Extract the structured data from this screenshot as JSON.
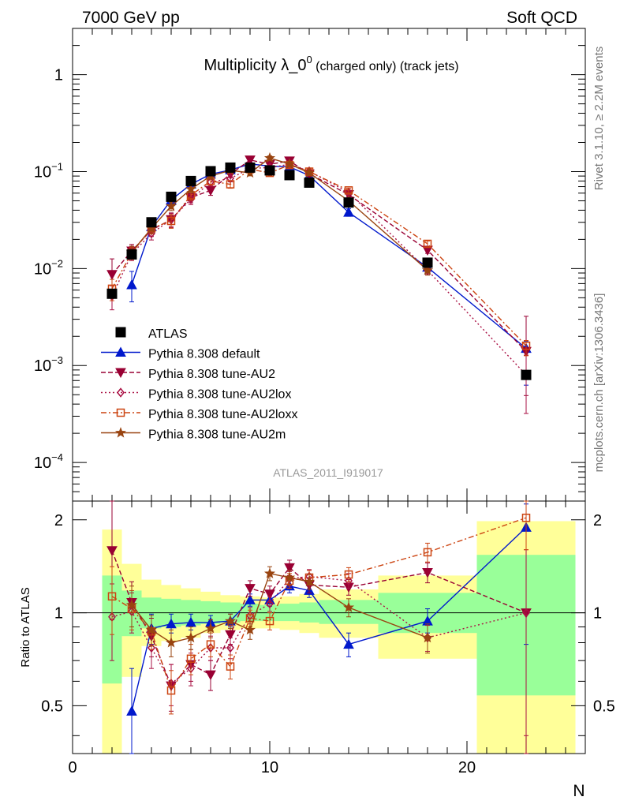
{
  "header": {
    "left": "7000 GeV pp",
    "right": "Soft QCD"
  },
  "side": {
    "rivet": "Rivet 3.1.10, ≥ 2.2M events",
    "mcplots": "mcplots.cern.ch [arXiv:1306.3436]"
  },
  "chart_data": {
    "type": "scatter",
    "title": "Multiplicity λ_0",
    "title_sup": "0",
    "title_suffix": " (charged only) (track jets)",
    "analysis_id": "ATLAS_2011_I919017",
    "xlabel": "N",
    "ylabel_ratio": "Ratio to ATLAS",
    "xlim": [
      0,
      26
    ],
    "ylim_main": [
      4e-05,
      3
    ],
    "y_log": true,
    "ylim_ratio": [
      0.35,
      2.3
    ],
    "x_ticks": [
      0,
      10,
      20
    ],
    "y_ticks_main": [
      {
        "v": 1,
        "base": "1",
        "exp": ""
      },
      {
        "v": 0.1,
        "base": "10",
        "exp": "−1"
      },
      {
        "v": 0.01,
        "base": "10",
        "exp": "−2"
      },
      {
        "v": 0.001,
        "base": "10",
        "exp": "−3"
      },
      {
        "v": 0.0001,
        "base": "10",
        "exp": "−4"
      }
    ],
    "y_ticks_ratio": [
      0.5,
      1,
      2
    ],
    "data": {
      "name": "ATLAS",
      "color": "#000000",
      "points": [
        {
          "x": 2,
          "y": 0.0055
        },
        {
          "x": 3,
          "y": 0.014
        },
        {
          "x": 4,
          "y": 0.03
        },
        {
          "x": 5,
          "y": 0.055
        },
        {
          "x": 6,
          "y": 0.08
        },
        {
          "x": 7,
          "y": 0.101
        },
        {
          "x": 8,
          "y": 0.11
        },
        {
          "x": 9,
          "y": 0.11
        },
        {
          "x": 10,
          "y": 0.103
        },
        {
          "x": 11,
          "y": 0.092
        },
        {
          "x": 12,
          "y": 0.077
        },
        {
          "x": 14,
          "y": 0.048
        },
        {
          "x": 18,
          "y": 0.0115
        },
        {
          "x": 23,
          "y": 0.0008
        }
      ]
    },
    "bands": [
      {
        "x0": 1.5,
        "x1": 2.5,
        "y_lo": 0.59,
        "y_hi": 1.32,
        "o_lo": 0.35,
        "o_hi": 1.86
      },
      {
        "x0": 2.5,
        "x1": 3.5,
        "y_lo": 0.84,
        "y_hi": 1.18,
        "o_lo": 0.62,
        "o_hi": 1.44
      },
      {
        "x0": 3.5,
        "x1": 4.5,
        "y_lo": 0.89,
        "y_hi": 1.12,
        "o_lo": 0.78,
        "o_hi": 1.28
      },
      {
        "x0": 4.5,
        "x1": 5.5,
        "y_lo": 0.9,
        "y_hi": 1.11,
        "o_lo": 0.81,
        "o_hi": 1.23
      },
      {
        "x0": 5.5,
        "x1": 6.5,
        "y_lo": 0.91,
        "y_hi": 1.1,
        "o_lo": 0.83,
        "o_hi": 1.2
      },
      {
        "x0": 6.5,
        "x1": 7.5,
        "y_lo": 0.92,
        "y_hi": 1.09,
        "o_lo": 0.86,
        "o_hi": 1.17
      },
      {
        "x0": 7.5,
        "x1": 8.5,
        "y_lo": 0.93,
        "y_hi": 1.08,
        "o_lo": 0.88,
        "o_hi": 1.14
      },
      {
        "x0": 8.5,
        "x1": 9.5,
        "y_lo": 0.94,
        "y_hi": 1.07,
        "o_lo": 0.89,
        "o_hi": 1.13
      },
      {
        "x0": 9.5,
        "x1": 10.5,
        "y_lo": 0.94,
        "y_hi": 1.06,
        "o_lo": 0.89,
        "o_hi": 1.12
      },
      {
        "x0": 10.5,
        "x1": 11.5,
        "y_lo": 0.94,
        "y_hi": 1.07,
        "o_lo": 0.88,
        "o_hi": 1.13
      },
      {
        "x0": 11.5,
        "x1": 12.5,
        "y_lo": 0.93,
        "y_hi": 1.08,
        "o_lo": 0.86,
        "o_hi": 1.15
      },
      {
        "x0": 12.5,
        "x1": 15.5,
        "y_lo": 0.92,
        "y_hi": 1.1,
        "o_lo": 0.83,
        "o_hi": 1.19
      },
      {
        "x0": 15.5,
        "x1": 20.5,
        "y_lo": 0.86,
        "y_hi": 1.16,
        "o_lo": 0.71,
        "o_hi": 1.32
      },
      {
        "x0": 20.5,
        "x1": 25.5,
        "y_lo": 0.54,
        "y_hi": 1.54,
        "o_lo": 0.35,
        "o_hi": 1.98
      }
    ],
    "series": [
      {
        "name": "Pythia 8.308 default",
        "color": "#0018cc",
        "dash": "",
        "marker": "triangle-up",
        "points": [
          {
            "x": 3,
            "y": 0.0068,
            "r": 0.48,
            "rlo": 0.32,
            "rhi": 0.66
          },
          {
            "x": 4,
            "y": 0.027,
            "r": 0.89,
            "rlo": 0.79,
            "rhi": 0.99
          },
          {
            "x": 5,
            "y": 0.051,
            "r": 0.92,
            "rlo": 0.86,
            "rhi": 0.99
          },
          {
            "x": 6,
            "y": 0.074,
            "r": 0.93,
            "rlo": 0.88,
            "rhi": 0.99
          },
          {
            "x": 7,
            "y": 0.094,
            "r": 0.93,
            "rlo": 0.88,
            "rhi": 0.98
          },
          {
            "x": 8,
            "y": 0.104,
            "r": 0.94,
            "rlo": 0.9,
            "rhi": 0.99
          },
          {
            "x": 9,
            "y": 0.12,
            "r": 1.1,
            "rlo": 1.05,
            "rhi": 1.15
          },
          {
            "x": 10,
            "y": 0.114,
            "r": 1.1,
            "rlo": 1.05,
            "rhi": 1.15
          },
          {
            "x": 11,
            "y": 0.112,
            "r": 1.22,
            "rlo": 1.16,
            "rhi": 1.28
          },
          {
            "x": 12,
            "y": 0.091,
            "r": 1.18,
            "rlo": 1.12,
            "rhi": 1.24
          },
          {
            "x": 14,
            "y": 0.038,
            "r": 0.79,
            "rlo": 0.72,
            "rhi": 0.86
          },
          {
            "x": 18,
            "y": 0.0103,
            "r": 0.94,
            "rlo": 0.86,
            "rhi": 1.03
          },
          {
            "x": 23,
            "y": 0.0015,
            "r": 1.89,
            "rlo": 0.79,
            "rhi": 2.25
          }
        ]
      },
      {
        "name": "Pythia 8.308 tune-AU2",
        "color": "#990033",
        "dash": "6,3",
        "marker": "triangle-down",
        "points": [
          {
            "x": 2,
            "y": 0.0087,
            "r": 1.59,
            "rlo": 0.95,
            "rhi": 2.3
          },
          {
            "x": 3,
            "y": 0.0152,
            "r": 1.08,
            "rlo": 0.9,
            "rhi": 1.26
          },
          {
            "x": 4,
            "y": 0.025,
            "r": 0.84,
            "rlo": 0.72,
            "rhi": 0.96
          },
          {
            "x": 5,
            "y": 0.032,
            "r": 0.58,
            "rlo": 0.48,
            "rhi": 0.68
          },
          {
            "x": 6,
            "y": 0.054,
            "r": 0.68,
            "rlo": 0.6,
            "rhi": 0.76
          },
          {
            "x": 7,
            "y": 0.064,
            "r": 0.63,
            "rlo": 0.56,
            "rhi": 0.7
          },
          {
            "x": 8,
            "y": 0.094,
            "r": 0.85,
            "rlo": 0.79,
            "rhi": 0.91
          },
          {
            "x": 9,
            "y": 0.132,
            "r": 1.2,
            "rlo": 1.13,
            "rhi": 1.27
          },
          {
            "x": 10,
            "y": 0.119,
            "r": 1.15,
            "rlo": 1.08,
            "rhi": 1.22
          },
          {
            "x": 11,
            "y": 0.129,
            "r": 1.4,
            "rlo": 1.32,
            "rhi": 1.48
          },
          {
            "x": 12,
            "y": 0.095,
            "r": 1.23,
            "rlo": 1.16,
            "rhi": 1.3
          },
          {
            "x": 14,
            "y": 0.058,
            "r": 1.21,
            "rlo": 1.14,
            "rhi": 1.28
          },
          {
            "x": 18,
            "y": 0.0155,
            "r": 1.35,
            "rlo": 1.25,
            "rhi": 1.45
          },
          {
            "x": 23,
            "y": 0.0014,
            "r": 1.0,
            "rlo": 0.35,
            "rhi": 2.3
          }
        ]
      },
      {
        "name": "Pythia 8.308 tune-AU2lox",
        "color": "#aa1144",
        "dash": "2,3",
        "marker": "diamond",
        "points": [
          {
            "x": 2,
            "y": 0.0052,
            "r": 0.97,
            "rlo": 0.7,
            "rhi": 1.24
          },
          {
            "x": 3,
            "y": 0.0142,
            "r": 1.01,
            "rlo": 0.86,
            "rhi": 1.16
          },
          {
            "x": 4,
            "y": 0.023,
            "r": 0.77,
            "rlo": 0.66,
            "rhi": 0.88
          },
          {
            "x": 5,
            "y": 0.032,
            "r": 0.59,
            "rlo": 0.5,
            "rhi": 0.68
          },
          {
            "x": 6,
            "y": 0.052,
            "r": 0.66,
            "rlo": 0.58,
            "rhi": 0.74
          },
          {
            "x": 7,
            "y": 0.078,
            "r": 0.77,
            "rlo": 0.7,
            "rhi": 0.84
          },
          {
            "x": 8,
            "y": 0.085,
            "r": 0.77,
            "rlo": 0.71,
            "rhi": 0.83
          },
          {
            "x": 9,
            "y": 0.108,
            "r": 0.98,
            "rlo": 0.92,
            "rhi": 1.04
          },
          {
            "x": 10,
            "y": 0.11,
            "r": 1.07,
            "rlo": 1.01,
            "rhi": 1.13
          },
          {
            "x": 11,
            "y": 0.119,
            "r": 1.29,
            "rlo": 1.22,
            "rhi": 1.36
          },
          {
            "x": 12,
            "y": 0.101,
            "r": 1.31,
            "rlo": 1.24,
            "rhi": 1.38
          },
          {
            "x": 14,
            "y": 0.061,
            "r": 1.27,
            "rlo": 1.2,
            "rhi": 1.34
          },
          {
            "x": 18,
            "y": 0.0096,
            "r": 0.83,
            "rlo": 0.75,
            "rhi": 0.91
          },
          {
            "x": 23,
            "y": 0.0008,
            "r": 1.0,
            "rlo": 0.4,
            "rhi": 1.6
          }
        ]
      },
      {
        "name": "Pythia 8.308 tune-AU2loxx",
        "color": "#cc4411",
        "dash": "7,3,2,3",
        "marker": "square-open",
        "points": [
          {
            "x": 2,
            "y": 0.0062,
            "r": 1.13,
            "rlo": 0.85,
            "rhi": 1.41
          },
          {
            "x": 3,
            "y": 0.0145,
            "r": 1.03,
            "rlo": 0.88,
            "rhi": 1.18
          },
          {
            "x": 4,
            "y": 0.026,
            "r": 0.87,
            "rlo": 0.76,
            "rhi": 0.98
          },
          {
            "x": 5,
            "y": 0.031,
            "r": 0.56,
            "rlo": 0.47,
            "rhi": 0.65
          },
          {
            "x": 6,
            "y": 0.057,
            "r": 0.71,
            "rlo": 0.63,
            "rhi": 0.79
          },
          {
            "x": 7,
            "y": 0.08,
            "r": 0.79,
            "rlo": 0.72,
            "rhi": 0.86
          },
          {
            "x": 8,
            "y": 0.074,
            "r": 0.67,
            "rlo": 0.61,
            "rhi": 0.73
          },
          {
            "x": 9,
            "y": 0.106,
            "r": 0.96,
            "rlo": 0.9,
            "rhi": 1.02
          },
          {
            "x": 10,
            "y": 0.097,
            "r": 0.94,
            "rlo": 0.88,
            "rhi": 1.0
          },
          {
            "x": 11,
            "y": 0.117,
            "r": 1.27,
            "rlo": 1.2,
            "rhi": 1.34
          },
          {
            "x": 12,
            "y": 0.1,
            "r": 1.3,
            "rlo": 1.23,
            "rhi": 1.37
          },
          {
            "x": 14,
            "y": 0.064,
            "r": 1.33,
            "rlo": 1.26,
            "rhi": 1.4
          },
          {
            "x": 18,
            "y": 0.018,
            "r": 1.57,
            "rlo": 1.46,
            "rhi": 1.68
          },
          {
            "x": 23,
            "y": 0.0016,
            "r": 2.03,
            "rlo": 1.6,
            "rhi": 2.3
          }
        ]
      },
      {
        "name": "Pythia 8.308 tune-AU2m",
        "color": "#994411",
        "dash": "",
        "marker": "star",
        "points": [
          {
            "x": 3,
            "y": 0.0148,
            "r": 1.06,
            "rlo": 0.9,
            "rhi": 1.22
          },
          {
            "x": 4,
            "y": 0.026,
            "r": 0.88,
            "rlo": 0.78,
            "rhi": 0.98
          },
          {
            "x": 5,
            "y": 0.044,
            "r": 0.8,
            "rlo": 0.72,
            "rhi": 0.88
          },
          {
            "x": 6,
            "y": 0.066,
            "r": 0.83,
            "rlo": 0.76,
            "rhi": 0.9
          },
          {
            "x": 7,
            "y": 0.09,
            "r": 0.89,
            "rlo": 0.83,
            "rhi": 0.95
          },
          {
            "x": 8,
            "y": 0.103,
            "r": 0.94,
            "rlo": 0.89,
            "rhi": 0.99
          },
          {
            "x": 9,
            "y": 0.097,
            "r": 0.88,
            "rlo": 0.82,
            "rhi": 0.94
          },
          {
            "x": 10,
            "y": 0.138,
            "r": 1.34,
            "rlo": 1.27,
            "rhi": 1.41
          },
          {
            "x": 11,
            "y": 0.12,
            "r": 1.3,
            "rlo": 1.23,
            "rhi": 1.37
          },
          {
            "x": 12,
            "y": 0.097,
            "r": 1.26,
            "rlo": 1.19,
            "rhi": 1.33
          },
          {
            "x": 14,
            "y": 0.05,
            "r": 1.04,
            "rlo": 0.97,
            "rhi": 1.11
          },
          {
            "x": 18,
            "y": 0.0096,
            "r": 0.83,
            "rlo": 0.74,
            "rhi": 0.92
          }
        ]
      }
    ]
  }
}
